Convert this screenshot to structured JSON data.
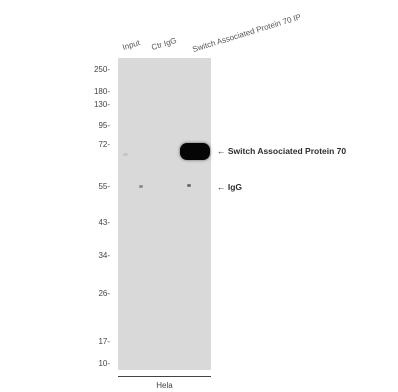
{
  "lanes": [
    {
      "label": "Input"
    },
    {
      "label": "Ctr IgG"
    },
    {
      "label": "Switch Associated Protein 70 IP"
    }
  ],
  "mw_markers": [
    "250-",
    "180-",
    "130-",
    "95-",
    "72-",
    "55-",
    "43-",
    "34-",
    "26-",
    "17-",
    "10-"
  ],
  "band_labels": [
    {
      "text": "Switch Associated Protein 70",
      "arrow": "←"
    },
    {
      "text": "IgG",
      "arrow": "←"
    }
  ],
  "cell_line": "Hela"
}
